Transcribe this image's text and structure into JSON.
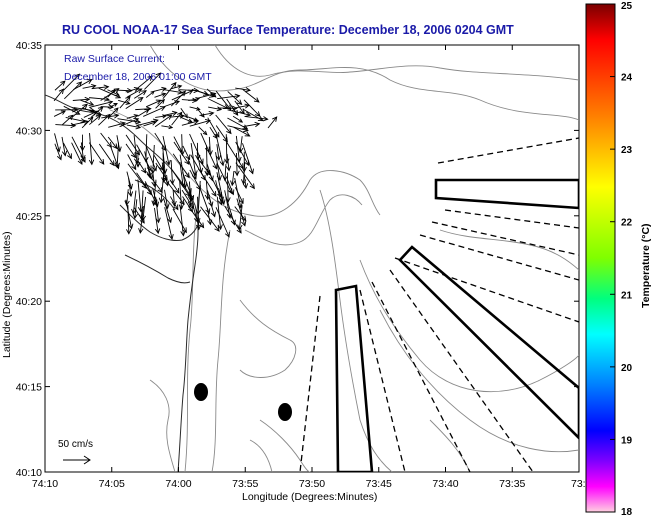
{
  "title": "RU COOL  NOAA-17  Sea Surface Temperature:  December 18, 2006 0204 GMT",
  "current_label_line1": "Raw Surface Current:",
  "current_label_line2": "December 18, 2006 01:00 GMT",
  "x_axis": {
    "label": "Longitude (Degrees:Minutes)",
    "ticks": [
      "74:10",
      "74:05",
      "74:00",
      "73:55",
      "73:50",
      "73:45",
      "73:40",
      "73:35",
      "73:3"
    ]
  },
  "y_axis": {
    "label": "Latitude (Degrees:Minutes)",
    "ticks": [
      "40:35",
      "40:30",
      "40:25",
      "40:20",
      "40:15",
      "40:10"
    ]
  },
  "scale_label": "50 cm/s",
  "colorbar": {
    "label": "Temperature (°C)",
    "ticks": [
      "25",
      "24",
      "23",
      "22",
      "21",
      "20",
      "19",
      "18"
    ],
    "colors": [
      "#8b0000",
      "#ff0000",
      "#ff7f00",
      "#ffff00",
      "#7fff00",
      "#00ff7f",
      "#00ffff",
      "#007fff",
      "#0000ff",
      "#7f00ff",
      "#ff00ff",
      "#ffb6c1"
    ]
  },
  "icons": [
    "current-vector-icon",
    "buoy-marker-icon"
  ]
}
